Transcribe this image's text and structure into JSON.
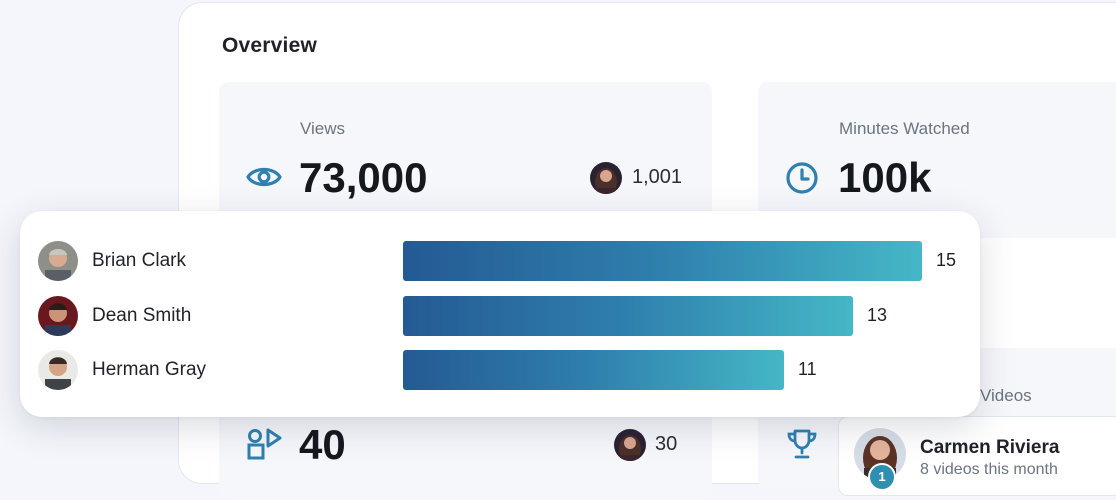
{
  "overview": {
    "title": "Overview",
    "views": {
      "label": "Views",
      "value": "73,000",
      "icon": "eye-icon",
      "viewer_count": "1,001"
    },
    "minutes": {
      "label": "Minutes Watched",
      "value": "100k",
      "icon": "clock-icon"
    },
    "uploads": {
      "value": "40",
      "icon": "shapes-icon",
      "viewer_count": "30"
    },
    "top_videos": {
      "label_partial": "Videos",
      "trophy_icon": "trophy-icon",
      "top_creator": {
        "name": "Carmen Riviera",
        "subtitle": "8 videos this month",
        "rank": "1"
      }
    }
  },
  "ranking": {
    "rows": [
      {
        "name": "Brian Clark",
        "value": 15
      },
      {
        "name": "Dean Smith",
        "value": 13
      },
      {
        "name": "Herman Gray",
        "value": 11
      }
    ],
    "max": 15
  },
  "colors": {
    "accent": "#2f80ae",
    "bar_start": "#245a93",
    "bar_end": "#45b7c6",
    "card_bg": "#f6f7fb",
    "page_bg": "#f4f6fb"
  }
}
